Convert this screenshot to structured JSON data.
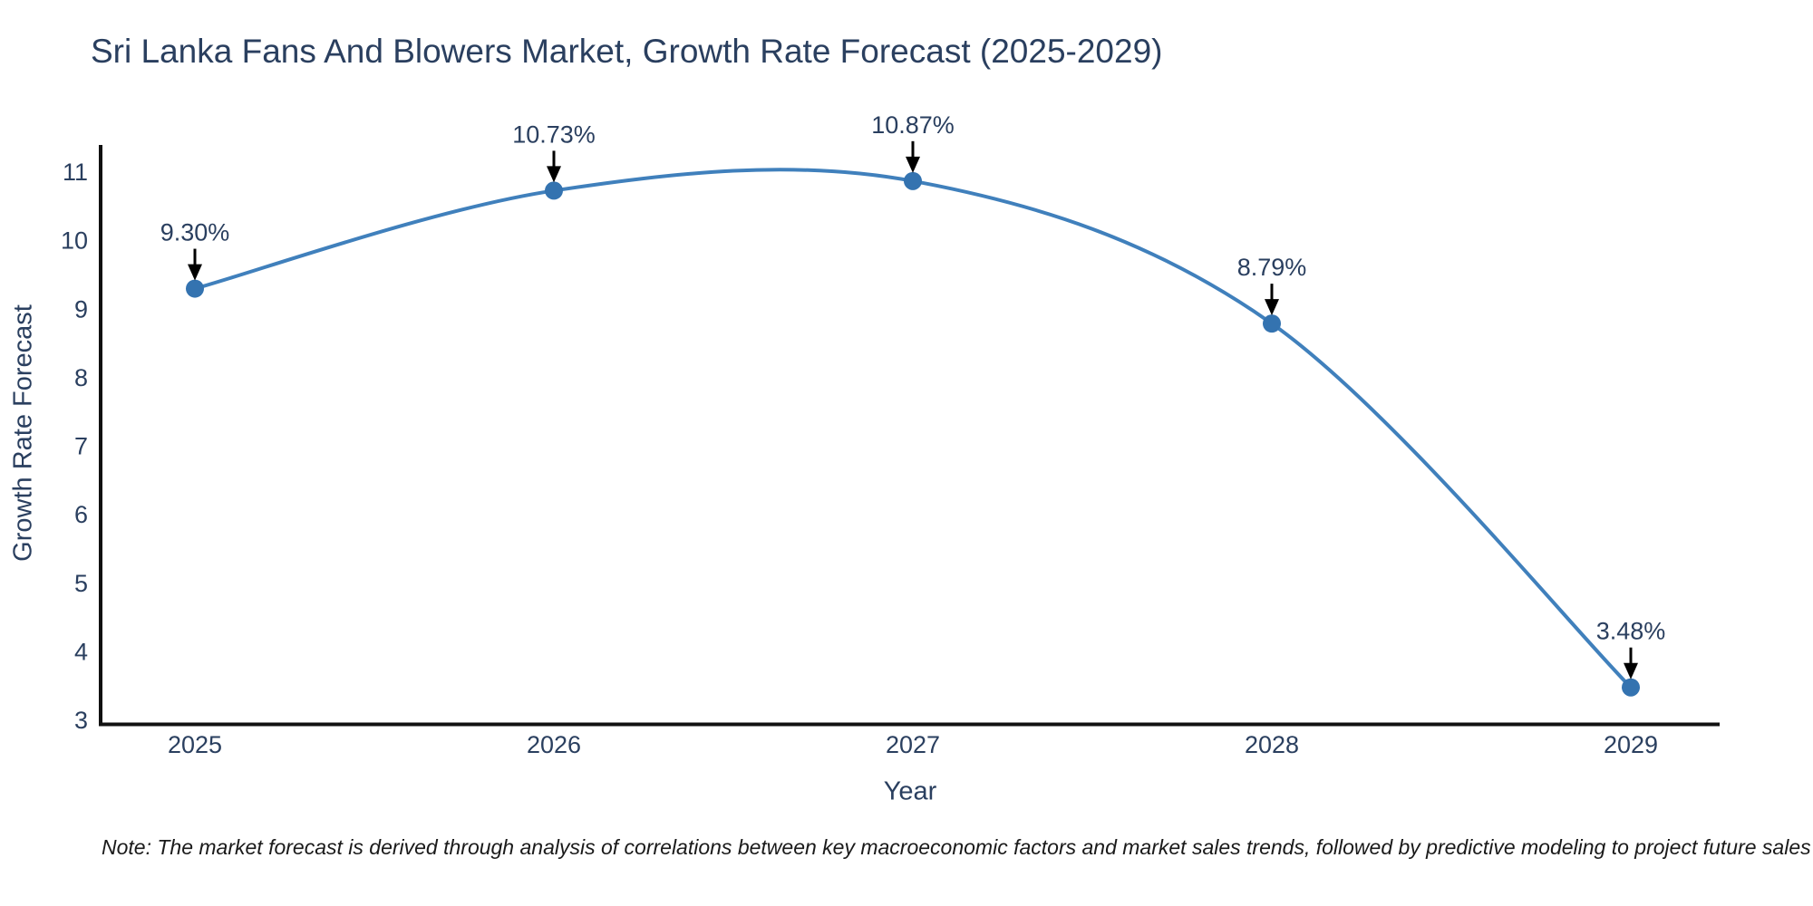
{
  "page": {
    "background": "#ffffff"
  },
  "chart_data": {
    "type": "line",
    "title": "Sri Lanka Fans And Blowers Market, Growth Rate Forecast (2025-2029)",
    "xlabel": "Year",
    "ylabel": "Growth Rate Forecast",
    "x": [
      2025,
      2026,
      2027,
      2028,
      2029
    ],
    "series": [
      {
        "name": "Growth Rate Forecast",
        "values": [
          9.3,
          10.73,
          10.87,
          8.79,
          3.48
        ]
      }
    ],
    "point_labels": [
      "9.30%",
      "10.73%",
      "10.87%",
      "8.79%",
      "3.48%"
    ],
    "yticks": [
      3,
      4,
      5,
      6,
      7,
      8,
      9,
      10,
      11
    ],
    "ylim": [
      2.94,
      11.46
    ],
    "line_shape": "spline",
    "grid": false,
    "legend": "none",
    "colors": {
      "line": "#4080bc",
      "marker": "#3473b0",
      "axis": "#111111",
      "text": "#2a3f5f",
      "annotation_arrow": "#000000",
      "note_text": "#1a1a1a"
    },
    "note": "Note: The market forecast is derived through analysis of correlations between key macroeconomic factors and market sales trends, followed by predictive modeling to project future sales"
  }
}
